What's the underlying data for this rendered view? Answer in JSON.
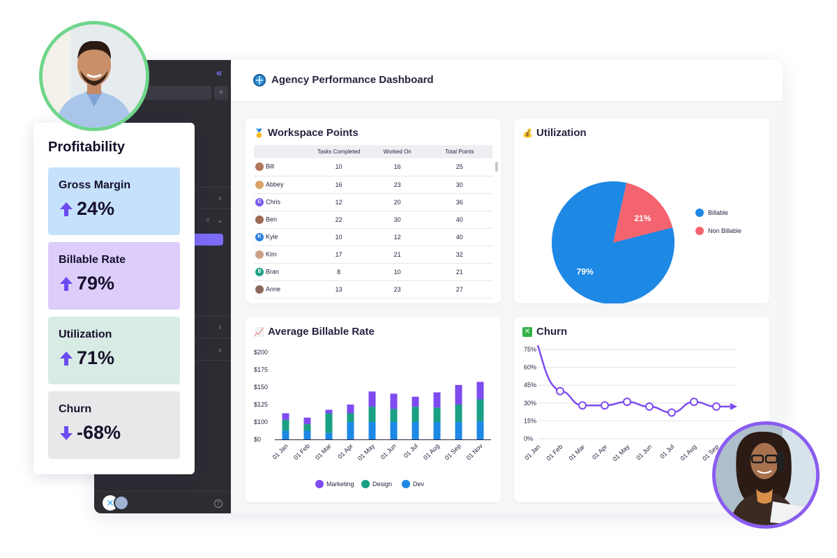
{
  "header": {
    "title": "Agency Performance Dashboard"
  },
  "workspace_points": {
    "title": "Workspace Points",
    "columns": [
      "",
      "Tasks Completed",
      "Worked On",
      "Total Points"
    ],
    "rows": [
      {
        "name": "Bill",
        "avatar_color": "#b0775a",
        "initial": "",
        "tasks": "10",
        "worked": "16",
        "points": "25"
      },
      {
        "name": "Abbey",
        "avatar_color": "#d9a36a",
        "initial": "",
        "tasks": "16",
        "worked": "23",
        "points": "30"
      },
      {
        "name": "Chris",
        "avatar_color": "#7b5cf0",
        "initial": "C",
        "tasks": "12",
        "worked": "20",
        "points": "36"
      },
      {
        "name": "Ben",
        "avatar_color": "#a06a55",
        "initial": "",
        "tasks": "22",
        "worked": "30",
        "points": "40"
      },
      {
        "name": "Kyle",
        "avatar_color": "#2f7fe0",
        "initial": "K",
        "tasks": "10",
        "worked": "12",
        "points": "40"
      },
      {
        "name": "Kim",
        "avatar_color": "#caa088",
        "initial": "",
        "tasks": "17",
        "worked": "21",
        "points": "32"
      },
      {
        "name": "Bran",
        "avatar_color": "#1aa084",
        "initial": "B",
        "tasks": "8",
        "worked": "10",
        "points": "21"
      },
      {
        "name": "Anne",
        "avatar_color": "#8a6a5a",
        "initial": "",
        "tasks": "13",
        "worked": "23",
        "points": "27"
      }
    ]
  },
  "utilization": {
    "title": "Utilization",
    "legend": [
      {
        "label": "Billable",
        "color": "#1e88e5"
      },
      {
        "label": "Non Billable",
        "color": "#f4646e"
      }
    ]
  },
  "billable_rate": {
    "title": "Average Billable Rate"
  },
  "churn": {
    "title": "Churn"
  },
  "profitability": {
    "title": "Profitability",
    "metrics": [
      {
        "label": "Gross Margin",
        "value": "24%",
        "direction": "up",
        "bg": "#c5e1fb"
      },
      {
        "label": "Billable Rate",
        "value": "79%",
        "direction": "up",
        "bg": "#dccdfb"
      },
      {
        "label": "Utilization",
        "value": "71%",
        "direction": "up",
        "bg": "#d8ebe4"
      },
      {
        "label": "Churn",
        "value": "-68%",
        "direction": "down",
        "bg": "#e8e8ea"
      }
    ],
    "arrow_color": "#6b4bf0"
  },
  "chart_data": [
    {
      "type": "pie",
      "categories": [
        "Billable",
        "Non Billable"
      ],
      "values": [
        79,
        21
      ],
      "labels": [
        "79%",
        "21%"
      ],
      "colors": [
        "#1e88e5",
        "#f4646e"
      ],
      "legend": "right"
    },
    {
      "type": "bar",
      "stacked": true,
      "categories": [
        "01 Jan",
        "01 Feb",
        "01 Mar",
        "01 Apr",
        "01 May",
        "01 Jun",
        "01 Jul",
        "01 Aug",
        "01 Sep",
        "01 Nov"
      ],
      "series": [
        {
          "name": "Dev",
          "color": "#1e88e5",
          "values": [
            20,
            20,
            15,
            40,
            40,
            40,
            40,
            40,
            40,
            42
          ]
        },
        {
          "name": "Design",
          "color": "#1aa084",
          "values": [
            25,
            15,
            45,
            20,
            35,
            30,
            35,
            33,
            40,
            50
          ]
        },
        {
          "name": "Marketing",
          "color": "#7d4bf0",
          "values": [
            15,
            15,
            8,
            20,
            35,
            35,
            23,
            35,
            45,
            40
          ]
        }
      ],
      "yticks": [
        "$0",
        "$100",
        "$125",
        "$150",
        "$175",
        "$200"
      ],
      "ylim": [
        0,
        200
      ],
      "grid": false,
      "legend": "bottom",
      "legend_order": [
        "Marketing",
        "Design",
        "Dev"
      ]
    },
    {
      "type": "line",
      "categories": [
        "01 Jan",
        "01 Feb",
        "01 Mar",
        "01 Apr",
        "01 May",
        "01 Jun",
        "01 Jul",
        "01 Aug",
        "01 Sep"
      ],
      "series": [
        {
          "name": "",
          "color": "#7d4bf0",
          "values": [
            78,
            40,
            28,
            28,
            31,
            27,
            22,
            31,
            27
          ]
        }
      ],
      "yticks": [
        "0%",
        "15%",
        "30%",
        "45%",
        "60%",
        "75%"
      ],
      "ylim": [
        0,
        75
      ],
      "grid": true
    }
  ]
}
